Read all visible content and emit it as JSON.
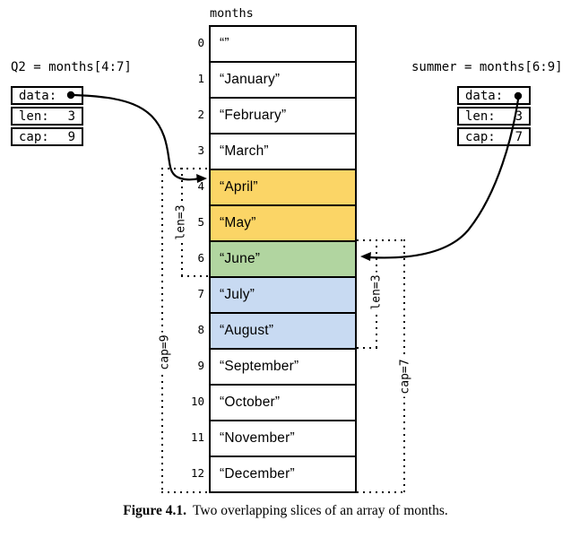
{
  "array": {
    "label": "months",
    "cells": [
      {
        "index": "0",
        "value": "“”",
        "slice": "none"
      },
      {
        "index": "1",
        "value": "“January”",
        "slice": "none"
      },
      {
        "index": "2",
        "value": "“February”",
        "slice": "none"
      },
      {
        "index": "3",
        "value": "“March”",
        "slice": "none"
      },
      {
        "index": "4",
        "value": "“April”",
        "slice": "q2"
      },
      {
        "index": "5",
        "value": "“May”",
        "slice": "q2"
      },
      {
        "index": "6",
        "value": "“June”",
        "slice": "overlap"
      },
      {
        "index": "7",
        "value": "“July”",
        "slice": "summer"
      },
      {
        "index": "8",
        "value": "“August”",
        "slice": "summer"
      },
      {
        "index": "9",
        "value": "“September”",
        "slice": "none"
      },
      {
        "index": "10",
        "value": "“October”",
        "slice": "none"
      },
      {
        "index": "11",
        "value": "“November”",
        "slice": "none"
      },
      {
        "index": "12",
        "value": "“December”",
        "slice": "none"
      }
    ]
  },
  "q2": {
    "title": "Q2 = months[4:7]",
    "fields": [
      {
        "label": "data:",
        "value": ""
      },
      {
        "label": "len:",
        "value": "3"
      },
      {
        "label": "cap:",
        "value": "9"
      }
    ],
    "len_bracket": "len=3",
    "cap_bracket": "cap=9"
  },
  "summer": {
    "title": "summer = months[6:9]",
    "fields": [
      {
        "label": "data:",
        "value": ""
      },
      {
        "label": "len:",
        "value": "3"
      },
      {
        "label": "cap:",
        "value": "7"
      }
    ],
    "len_bracket": "len=3",
    "cap_bracket": "cap=7"
  },
  "caption": {
    "label": "Figure 4.1.",
    "text": "Two overlapping slices of an array of months."
  },
  "colors": {
    "q2": "#FBD566",
    "overlap": "#B1D5A0",
    "summer": "#C8DAF2",
    "none": "#FFFFFF",
    "line": "#000000"
  }
}
